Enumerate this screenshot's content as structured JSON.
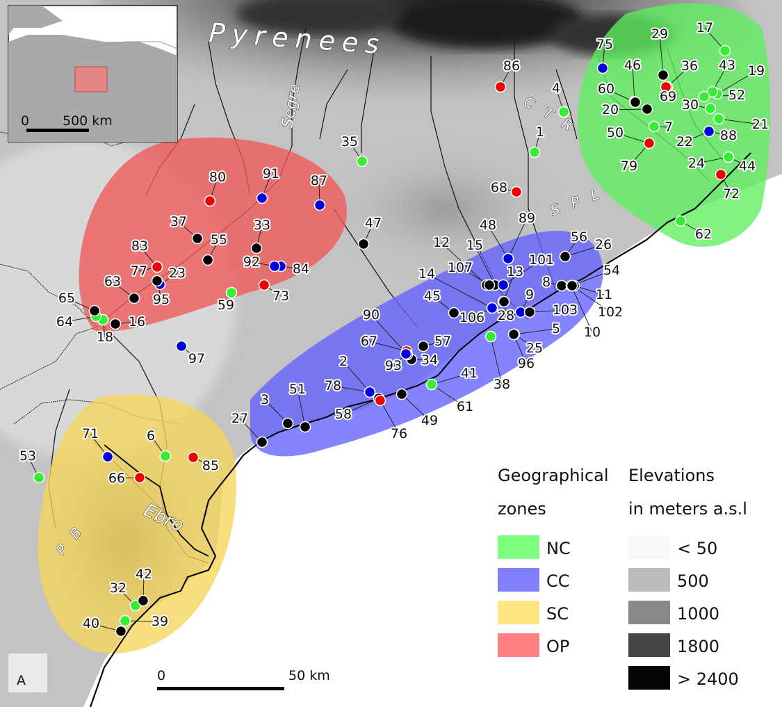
{
  "features": {
    "pyrenees": "Pyrenees",
    "segre": "Segre",
    "ebro": "Ebro",
    "ctr": "C T R",
    "spl": "S P L",
    "pb": "P B"
  },
  "inset": {
    "scale_start": "0",
    "scale_end": "500 km"
  },
  "scalebar": {
    "start": "0",
    "end": "50 km"
  },
  "panel_letter": "A",
  "legend": {
    "zones_title_1": "Geographical",
    "zones_title_2": "zones",
    "elev_title_1": "Elevations",
    "elev_title_2": "in meters a.s.l",
    "zones": [
      {
        "code": "NC",
        "color": "#80ff80"
      },
      {
        "code": "CC",
        "color": "#8080ff"
      },
      {
        "code": "SC",
        "color": "#ffe680"
      },
      {
        "code": "OP",
        "color": "#ff8080"
      }
    ],
    "elevations": [
      {
        "label": "< 50",
        "color": "#f9f9f9"
      },
      {
        "label": "500",
        "color": "#bcbcbc"
      },
      {
        "label": "1000",
        "color": "#888888"
      },
      {
        "label": "1800",
        "color": "#444444"
      },
      {
        "label": "> 2400",
        "color": "#050505"
      }
    ]
  },
  "zone_colors": {
    "NC": "#5cf05c",
    "CC": "#6262ff",
    "SC": "#f5d55a",
    "OP": "#f05858"
  },
  "point_colors": {
    "green": "#33ee33",
    "blue": "#0000dd",
    "red": "#ee0000",
    "black": "#000000"
  },
  "sites": [
    {
      "id": "1",
      "c": "green"
    },
    {
      "id": "2",
      "c": "blue"
    },
    {
      "id": "3",
      "c": "black"
    },
    {
      "id": "4",
      "c": "green"
    },
    {
      "id": "5",
      "c": "blue"
    },
    {
      "id": "6",
      "c": "green"
    },
    {
      "id": "7",
      "c": "green"
    },
    {
      "id": "8",
      "c": "black"
    },
    {
      "id": "9",
      "c": "blue"
    },
    {
      "id": "10",
      "c": "black"
    },
    {
      "id": "11",
      "c": "black"
    },
    {
      "id": "12",
      "c": "black"
    },
    {
      "id": "13",
      "c": "black"
    },
    {
      "id": "14",
      "c": "blue"
    },
    {
      "id": "15",
      "c": "black"
    },
    {
      "id": "16",
      "c": "black"
    },
    {
      "id": "17",
      "c": "green"
    },
    {
      "id": "18",
      "c": "green"
    },
    {
      "id": "19",
      "c": "green"
    },
    {
      "id": "20",
      "c": "black"
    },
    {
      "id": "21",
      "c": "green"
    },
    {
      "id": "22",
      "c": "blue"
    },
    {
      "id": "23",
      "c": "blue"
    },
    {
      "id": "24",
      "c": "green"
    },
    {
      "id": "25",
      "c": "blue"
    },
    {
      "id": "26",
      "c": "black"
    },
    {
      "id": "27",
      "c": "black"
    },
    {
      "id": "28",
      "c": "black"
    },
    {
      "id": "29",
      "c": "black"
    },
    {
      "id": "30",
      "c": "green"
    },
    {
      "id": "32",
      "c": "green"
    },
    {
      "id": "33",
      "c": "black"
    },
    {
      "id": "34",
      "c": "black"
    },
    {
      "id": "35",
      "c": "green"
    },
    {
      "id": "36",
      "c": "red"
    },
    {
      "id": "37",
      "c": "black"
    },
    {
      "id": "38",
      "c": "green"
    },
    {
      "id": "39",
      "c": "green"
    },
    {
      "id": "40",
      "c": "black"
    },
    {
      "id": "41",
      "c": "green"
    },
    {
      "id": "42",
      "c": "black"
    },
    {
      "id": "43",
      "c": "green"
    },
    {
      "id": "44",
      "c": "green"
    },
    {
      "id": "45",
      "c": "black"
    },
    {
      "id": "46",
      "c": "black"
    },
    {
      "id": "47",
      "c": "black"
    },
    {
      "id": "48",
      "c": "blue"
    },
    {
      "id": "49",
      "c": "black"
    },
    {
      "id": "50",
      "c": "red"
    },
    {
      "id": "51",
      "c": "black"
    },
    {
      "id": "52",
      "c": "green"
    },
    {
      "id": "53",
      "c": "green"
    },
    {
      "id": "54",
      "c": "black"
    },
    {
      "id": "55",
      "c": "black"
    },
    {
      "id": "56",
      "c": "black"
    },
    {
      "id": "57",
      "c": "black"
    },
    {
      "id": "58",
      "c": "black"
    },
    {
      "id": "59",
      "c": "green"
    },
    {
      "id": "60",
      "c": "black"
    },
    {
      "id": "61",
      "c": "green"
    },
    {
      "id": "62",
      "c": "green"
    },
    {
      "id": "63",
      "c": "black"
    },
    {
      "id": "64",
      "c": "green"
    },
    {
      "id": "65",
      "c": "black"
    },
    {
      "id": "66",
      "c": "red"
    },
    {
      "id": "67",
      "c": "red"
    },
    {
      "id": "68",
      "c": "red"
    },
    {
      "id": "69",
      "c": "red"
    },
    {
      "id": "71",
      "c": "blue"
    },
    {
      "id": "72",
      "c": "red"
    },
    {
      "id": "73",
      "c": "red"
    },
    {
      "id": "75",
      "c": "blue"
    },
    {
      "id": "76",
      "c": "red"
    },
    {
      "id": "77",
      "c": "red"
    },
    {
      "id": "78",
      "c": "blue"
    },
    {
      "id": "79",
      "c": "red"
    },
    {
      "id": "80",
      "c": "red"
    },
    {
      "id": "83",
      "c": "red"
    },
    {
      "id": "84",
      "c": "blue"
    },
    {
      "id": "85",
      "c": "red"
    },
    {
      "id": "86",
      "c": "red"
    },
    {
      "id": "87",
      "c": "blue"
    },
    {
      "id": "88",
      "c": "blue"
    },
    {
      "id": "89",
      "c": "blue"
    },
    {
      "id": "90",
      "c": "blue"
    },
    {
      "id": "91",
      "c": "blue"
    },
    {
      "id": "92",
      "c": "blue"
    },
    {
      "id": "93",
      "c": "blue"
    },
    {
      "id": "95",
      "c": "black"
    },
    {
      "id": "96",
      "c": "black"
    },
    {
      "id": "97",
      "c": "blue"
    },
    {
      "id": "101",
      "c": "blue"
    },
    {
      "id": "102",
      "c": "black"
    },
    {
      "id": "103",
      "c": "black"
    },
    {
      "id": "106",
      "c": "blue"
    },
    {
      "id": "107",
      "c": "black"
    }
  ]
}
